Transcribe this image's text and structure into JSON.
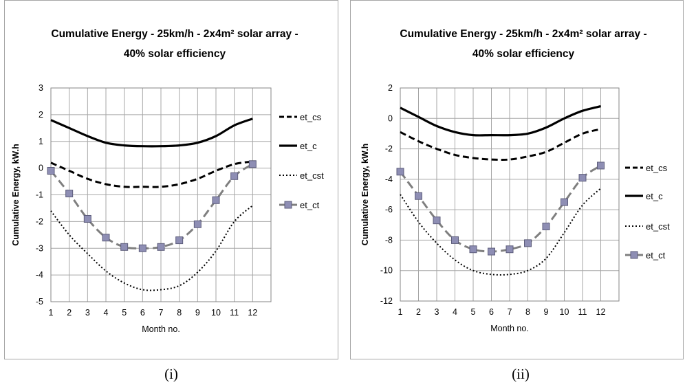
{
  "chart_data": [
    {
      "type": "line",
      "title_lines": [
        "Cumulative Energy - 25km/h  - 2x4m² solar array -",
        "40%  solar efficiency"
      ],
      "caption": "(i)",
      "xlabel": "Month no.",
      "ylabel": "Cumulative Energy, kW.h",
      "x": [
        1,
        2,
        3,
        4,
        5,
        6,
        7,
        8,
        9,
        10,
        11,
        12
      ],
      "xlim": [
        1,
        12
      ],
      "ylim": [
        -5,
        3
      ],
      "yticks": [
        3,
        2,
        1,
        0,
        -1,
        -2,
        -3,
        -4,
        -5
      ],
      "xticks": [
        "1",
        "2",
        "3",
        "4",
        "5",
        "6",
        "7",
        "8",
        "9",
        "10",
        "11",
        "12"
      ],
      "grid": true,
      "legend_position": "right",
      "series": [
        {
          "name": "et_cs",
          "style": "dashed",
          "color": "#000000",
          "values": [
            0.2,
            -0.1,
            -0.4,
            -0.6,
            -0.7,
            -0.7,
            -0.7,
            -0.6,
            -0.4,
            -0.1,
            0.15,
            0.25
          ]
        },
        {
          "name": "et_c",
          "style": "solid",
          "color": "#000000",
          "values": [
            1.8,
            1.5,
            1.2,
            0.95,
            0.85,
            0.82,
            0.82,
            0.85,
            0.95,
            1.2,
            1.6,
            1.85
          ]
        },
        {
          "name": "et_cst",
          "style": "dotted",
          "color": "#000000",
          "values": [
            -1.6,
            -2.5,
            -3.2,
            -3.85,
            -4.3,
            -4.55,
            -4.55,
            -4.4,
            -3.9,
            -3.1,
            -2.0,
            -1.4
          ]
        },
        {
          "name": "et_ct",
          "style": "dashed-marker",
          "color": "#7f7f7f",
          "marker_color": "#8e8eb4",
          "values": [
            -0.1,
            -0.95,
            -1.9,
            -2.6,
            -2.95,
            -3.0,
            -2.95,
            -2.7,
            -2.1,
            -1.2,
            -0.3,
            0.15
          ]
        }
      ]
    },
    {
      "type": "line",
      "title_lines": [
        "Cumulative Energy - 25km/h -  2x4m² solar array -",
        "40%  solar efficiency"
      ],
      "caption": "(ii)",
      "xlabel": "Month no.",
      "ylabel": "Cumulative Energy, kW.h",
      "x": [
        1,
        2,
        3,
        4,
        5,
        6,
        7,
        8,
        9,
        10,
        11,
        12
      ],
      "xlim": [
        1,
        12
      ],
      "ylim": [
        -12,
        2
      ],
      "yticks": [
        2,
        0,
        -2,
        -4,
        -6,
        -8,
        -10,
        -12
      ],
      "xticks": [
        "1",
        "2",
        "3",
        "4",
        "5",
        "6",
        "7",
        "8",
        "9",
        "10",
        "11",
        "12"
      ],
      "grid": true,
      "legend_position": "right",
      "series": [
        {
          "name": "et_cs",
          "style": "dashed",
          "color": "#000000",
          "values": [
            -0.9,
            -1.5,
            -2.0,
            -2.4,
            -2.6,
            -2.7,
            -2.7,
            -2.5,
            -2.2,
            -1.6,
            -1.0,
            -0.7
          ]
        },
        {
          "name": "et_c",
          "style": "solid",
          "color": "#000000",
          "values": [
            0.7,
            0.1,
            -0.5,
            -0.9,
            -1.1,
            -1.1,
            -1.1,
            -1.0,
            -0.6,
            0.0,
            0.5,
            0.8
          ]
        },
        {
          "name": "et_cst",
          "style": "dotted",
          "color": "#000000",
          "values": [
            -5.0,
            -6.8,
            -8.2,
            -9.3,
            -10.0,
            -10.25,
            -10.25,
            -10.0,
            -9.2,
            -7.5,
            -5.7,
            -4.6
          ]
        },
        {
          "name": "et_ct",
          "style": "dashed-marker",
          "color": "#7f7f7f",
          "marker_color": "#8e8eb4",
          "values": [
            -3.5,
            -5.1,
            -6.7,
            -8.0,
            -8.6,
            -8.75,
            -8.6,
            -8.2,
            -7.1,
            -5.5,
            -3.9,
            -3.1
          ]
        }
      ]
    }
  ]
}
